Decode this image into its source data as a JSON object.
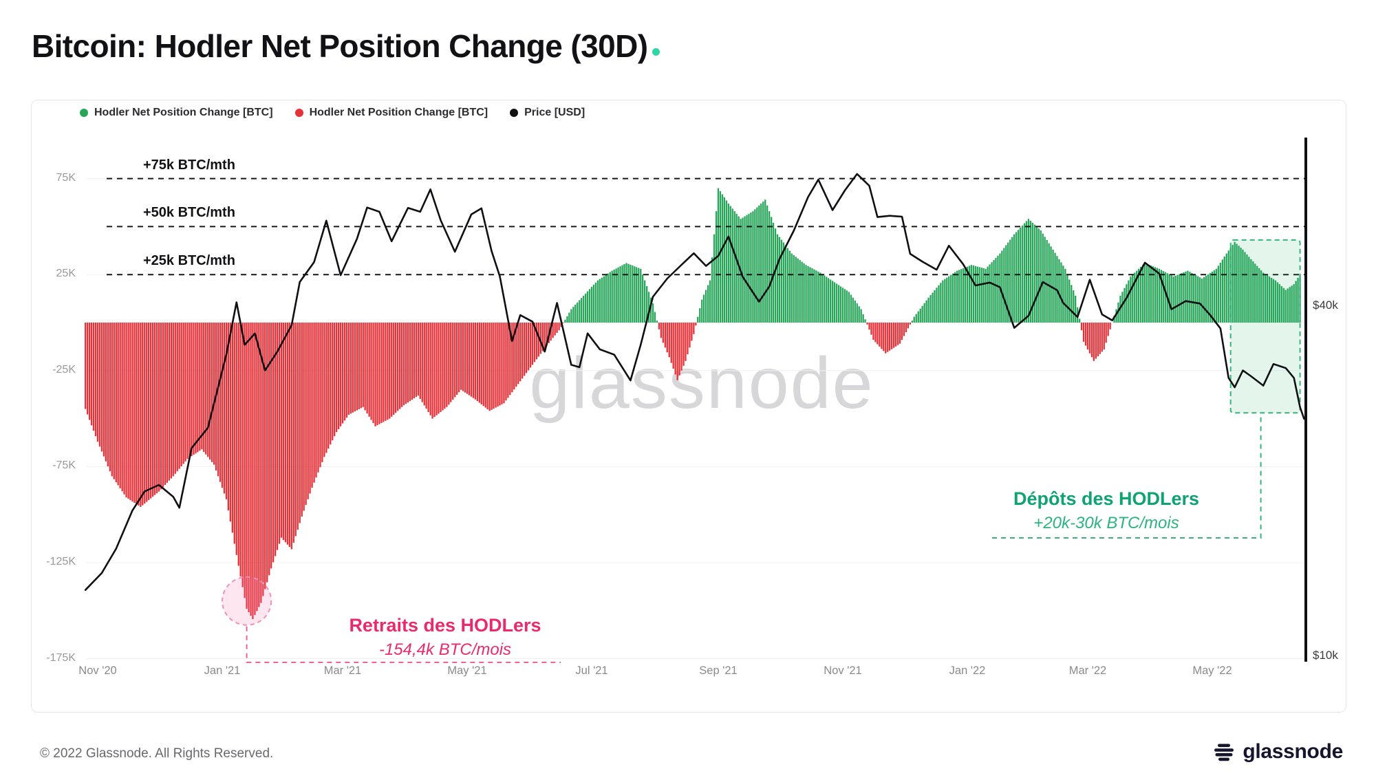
{
  "page": {
    "title": "Bitcoin: Hodler Net Position Change (30D)",
    "footer_copyright": "© 2022 Glassnode. All Rights Reserved.",
    "brand_logo_text": "glassnode",
    "watermark": "glassnode",
    "accent_teal": "#2fd6a5"
  },
  "legend": [
    {
      "label": "Hodler Net Position Change [BTC]",
      "color": "#27a65a"
    },
    {
      "label": "Hodler Net Position Change [BTC]",
      "color": "#e53137"
    },
    {
      "label": "Price [USD]",
      "color": "#111111"
    }
  ],
  "chart_data": {
    "type": "bar+line",
    "title": "Bitcoin: Hodler Net Position Change (30D)",
    "x_axis": {
      "ticks": [
        {
          "label": "Nov '20",
          "date": "2020-11-01"
        },
        {
          "label": "Jan '21",
          "date": "2021-01-01"
        },
        {
          "label": "Mar '21",
          "date": "2021-03-01"
        },
        {
          "label": "May '21",
          "date": "2021-05-01"
        },
        {
          "label": "Jul '21",
          "date": "2021-07-01"
        },
        {
          "label": "Sep '21",
          "date": "2021-09-01"
        },
        {
          "label": "Nov '21",
          "date": "2021-11-01"
        },
        {
          "label": "Jan '22",
          "date": "2022-01-01"
        },
        {
          "label": "Mar '22",
          "date": "2022-03-01"
        },
        {
          "label": "May '22",
          "date": "2022-05-01"
        }
      ]
    },
    "y_axis_left": {
      "unit": "BTC (thousands)",
      "range_k": [
        -185,
        90
      ],
      "ticks": [
        {
          "label": "75K",
          "value_k": 75
        },
        {
          "label": "25K",
          "value_k": 25
        },
        {
          "label": "-25K",
          "value_k": -25
        },
        {
          "label": "-75K",
          "value_k": -75
        },
        {
          "label": "-125K",
          "value_k": -125
        },
        {
          "label": "-175K",
          "value_k": -175
        }
      ]
    },
    "y_axis_right": {
      "unit": "USD (thousands)",
      "scale": "log",
      "ticks": [
        {
          "label": "$40k",
          "value_k": 40
        },
        {
          "label": "$10k",
          "value_k": 10
        }
      ]
    },
    "threshold_lines": [
      {
        "label": "+75k BTC/mth",
        "value_k": 75
      },
      {
        "label": "+50k BTC/mth",
        "value_k": 50
      },
      {
        "label": "+25k BTC/mth",
        "value_k": 25
      }
    ],
    "series": [
      {
        "name": "Hodler Net Position Change [BTC]",
        "type": "bar",
        "unit": "k BTC / month",
        "color_positive": "#27a65a",
        "color_negative": "#e53137",
        "points": [
          [
            "2020-10-26",
            -45
          ],
          [
            "2020-11-01",
            -62
          ],
          [
            "2020-11-08",
            -80
          ],
          [
            "2020-11-15",
            -91
          ],
          [
            "2020-11-22",
            -96
          ],
          [
            "2020-12-01",
            -88
          ],
          [
            "2020-12-08",
            -80
          ],
          [
            "2020-12-15",
            -71
          ],
          [
            "2020-12-22",
            -66
          ],
          [
            "2020-12-28",
            -74
          ],
          [
            "2021-01-03",
            -92
          ],
          [
            "2021-01-08",
            -121
          ],
          [
            "2021-01-13",
            -149
          ],
          [
            "2021-01-16",
            -154.4
          ],
          [
            "2021-01-20",
            -146
          ],
          [
            "2021-01-25",
            -128
          ],
          [
            "2021-01-30",
            -112
          ],
          [
            "2021-02-04",
            -118
          ],
          [
            "2021-02-09",
            -101
          ],
          [
            "2021-02-14",
            -86
          ],
          [
            "2021-02-20",
            -70
          ],
          [
            "2021-02-26",
            -57
          ],
          [
            "2021-03-04",
            -48
          ],
          [
            "2021-03-11",
            -44
          ],
          [
            "2021-03-17",
            -54
          ],
          [
            "2021-03-24",
            -50
          ],
          [
            "2021-03-31",
            -43
          ],
          [
            "2021-04-07",
            -38
          ],
          [
            "2021-04-14",
            -50
          ],
          [
            "2021-04-21",
            -44
          ],
          [
            "2021-04-28",
            -35
          ],
          [
            "2021-05-05",
            -40
          ],
          [
            "2021-05-12",
            -46
          ],
          [
            "2021-05-19",
            -42
          ],
          [
            "2021-05-26",
            -32
          ],
          [
            "2021-06-02",
            -22
          ],
          [
            "2021-06-09",
            -12
          ],
          [
            "2021-06-15",
            -4
          ],
          [
            "2021-06-21",
            7
          ],
          [
            "2021-06-27",
            14
          ],
          [
            "2021-07-04",
            22
          ],
          [
            "2021-07-11",
            27
          ],
          [
            "2021-07-18",
            31
          ],
          [
            "2021-07-25",
            28
          ],
          [
            "2021-07-31",
            10
          ],
          [
            "2021-08-04",
            -8
          ],
          [
            "2021-08-08",
            -18
          ],
          [
            "2021-08-12",
            -30
          ],
          [
            "2021-08-16",
            -20
          ],
          [
            "2021-08-20",
            -6
          ],
          [
            "2021-08-24",
            12
          ],
          [
            "2021-08-28",
            22
          ],
          [
            "2021-09-01",
            70
          ],
          [
            "2021-09-06",
            62
          ],
          [
            "2021-09-12",
            54
          ],
          [
            "2021-09-18",
            58
          ],
          [
            "2021-09-24",
            64
          ],
          [
            "2021-09-30",
            46
          ],
          [
            "2021-10-07",
            36
          ],
          [
            "2021-10-14",
            30
          ],
          [
            "2021-10-21",
            26
          ],
          [
            "2021-10-28",
            21
          ],
          [
            "2021-11-04",
            16
          ],
          [
            "2021-11-10",
            7
          ],
          [
            "2021-11-16",
            -9
          ],
          [
            "2021-11-22",
            -16
          ],
          [
            "2021-11-29",
            -11
          ],
          [
            "2021-12-06",
            3
          ],
          [
            "2021-12-13",
            13
          ],
          [
            "2021-12-20",
            22
          ],
          [
            "2021-12-27",
            27
          ],
          [
            "2022-01-03",
            30
          ],
          [
            "2022-01-10",
            28
          ],
          [
            "2022-01-17",
            36
          ],
          [
            "2022-01-24",
            46
          ],
          [
            "2022-01-31",
            54
          ],
          [
            "2022-02-06",
            48
          ],
          [
            "2022-02-12",
            38
          ],
          [
            "2022-02-18",
            28
          ],
          [
            "2022-02-23",
            14
          ],
          [
            "2022-02-27",
            -10
          ],
          [
            "2022-03-04",
            -20
          ],
          [
            "2022-03-09",
            -14
          ],
          [
            "2022-03-13",
            0
          ],
          [
            "2022-03-17",
            14
          ],
          [
            "2022-03-22",
            24
          ],
          [
            "2022-03-29",
            31
          ],
          [
            "2022-04-05",
            28
          ],
          [
            "2022-04-12",
            24
          ],
          [
            "2022-04-19",
            27
          ],
          [
            "2022-04-26",
            23
          ],
          [
            "2022-05-03",
            28
          ],
          [
            "2022-05-08",
            36
          ],
          [
            "2022-05-12",
            42
          ],
          [
            "2022-05-16",
            38
          ],
          [
            "2022-05-20",
            33
          ],
          [
            "2022-05-26",
            26
          ],
          [
            "2022-06-01",
            22
          ],
          [
            "2022-06-06",
            17
          ],
          [
            "2022-06-10",
            20
          ],
          [
            "2022-06-13",
            25
          ]
        ]
      },
      {
        "name": "Price [USD]",
        "type": "line",
        "unit": "k USD",
        "color": "#0f0f14",
        "points": [
          [
            "2020-10-26",
            13.0
          ],
          [
            "2020-11-03",
            13.9
          ],
          [
            "2020-11-10",
            15.3
          ],
          [
            "2020-11-18",
            17.8
          ],
          [
            "2020-11-24",
            19.2
          ],
          [
            "2020-12-01",
            19.7
          ],
          [
            "2020-12-08",
            18.8
          ],
          [
            "2020-12-11",
            18.0
          ],
          [
            "2020-12-17",
            22.8
          ],
          [
            "2020-12-25",
            24.7
          ],
          [
            "2021-01-03",
            33.0
          ],
          [
            "2021-01-08",
            40.6
          ],
          [
            "2021-01-12",
            34.3
          ],
          [
            "2021-01-17",
            35.9
          ],
          [
            "2021-01-22",
            31.0
          ],
          [
            "2021-01-28",
            33.4
          ],
          [
            "2021-02-04",
            37.1
          ],
          [
            "2021-02-08",
            44.0
          ],
          [
            "2021-02-15",
            47.6
          ],
          [
            "2021-02-21",
            56.1
          ],
          [
            "2021-02-28",
            45.2
          ],
          [
            "2021-03-08",
            52.2
          ],
          [
            "2021-03-13",
            59.1
          ],
          [
            "2021-03-19",
            58.1
          ],
          [
            "2021-03-25",
            51.7
          ],
          [
            "2021-04-02",
            59.0
          ],
          [
            "2021-04-08",
            58.1
          ],
          [
            "2021-04-13",
            63.5
          ],
          [
            "2021-04-18",
            56.2
          ],
          [
            "2021-04-25",
            49.6
          ],
          [
            "2021-05-03",
            57.5
          ],
          [
            "2021-05-08",
            58.9
          ],
          [
            "2021-05-13",
            49.7
          ],
          [
            "2021-05-17",
            45.0
          ],
          [
            "2021-05-23",
            34.8
          ],
          [
            "2021-05-27",
            38.6
          ],
          [
            "2021-06-02",
            37.6
          ],
          [
            "2021-06-08",
            33.4
          ],
          [
            "2021-06-14",
            40.5
          ],
          [
            "2021-06-21",
            31.7
          ],
          [
            "2021-06-25",
            31.4
          ],
          [
            "2021-06-29",
            35.9
          ],
          [
            "2021-07-05",
            33.7
          ],
          [
            "2021-07-12",
            33.0
          ],
          [
            "2021-07-20",
            29.8
          ],
          [
            "2021-07-25",
            34.3
          ],
          [
            "2021-07-31",
            41.5
          ],
          [
            "2021-08-07",
            44.6
          ],
          [
            "2021-08-14",
            47.1
          ],
          [
            "2021-08-20",
            49.3
          ],
          [
            "2021-08-26",
            46.9
          ],
          [
            "2021-09-01",
            48.8
          ],
          [
            "2021-09-06",
            52.7
          ],
          [
            "2021-09-13",
            44.9
          ],
          [
            "2021-09-21",
            40.7
          ],
          [
            "2021-09-26",
            43.2
          ],
          [
            "2021-10-01",
            48.2
          ],
          [
            "2021-10-08",
            53.9
          ],
          [
            "2021-10-15",
            61.6
          ],
          [
            "2021-10-20",
            66.0
          ],
          [
            "2021-10-27",
            58.5
          ],
          [
            "2021-11-02",
            63.2
          ],
          [
            "2021-11-08",
            67.5
          ],
          [
            "2021-11-14",
            64.4
          ],
          [
            "2021-11-18",
            56.9
          ],
          [
            "2021-11-24",
            57.2
          ],
          [
            "2021-11-30",
            57.0
          ],
          [
            "2021-12-04",
            49.2
          ],
          [
            "2021-12-10",
            47.7
          ],
          [
            "2021-12-17",
            46.2
          ],
          [
            "2021-12-23",
            50.8
          ],
          [
            "2021-12-30",
            47.2
          ],
          [
            "2022-01-05",
            43.4
          ],
          [
            "2022-01-12",
            43.9
          ],
          [
            "2022-01-17",
            43.1
          ],
          [
            "2022-01-24",
            36.7
          ],
          [
            "2022-01-31",
            38.5
          ],
          [
            "2022-02-07",
            44.0
          ],
          [
            "2022-02-14",
            42.6
          ],
          [
            "2022-02-17",
            40.5
          ],
          [
            "2022-02-24",
            38.3
          ],
          [
            "2022-03-02",
            44.4
          ],
          [
            "2022-03-08",
            38.7
          ],
          [
            "2022-03-13",
            37.8
          ],
          [
            "2022-03-20",
            41.3
          ],
          [
            "2022-03-29",
            47.5
          ],
          [
            "2022-04-05",
            45.5
          ],
          [
            "2022-04-11",
            39.5
          ],
          [
            "2022-04-18",
            40.8
          ],
          [
            "2022-04-25",
            40.4
          ],
          [
            "2022-04-30",
            38.6
          ],
          [
            "2022-05-05",
            36.6
          ],
          [
            "2022-05-09",
            30.1
          ],
          [
            "2022-05-12",
            29.0
          ],
          [
            "2022-05-16",
            31.0
          ],
          [
            "2022-05-20",
            30.3
          ],
          [
            "2022-05-26",
            29.2
          ],
          [
            "2022-05-31",
            31.8
          ],
          [
            "2022-06-06",
            31.3
          ],
          [
            "2022-06-10",
            30.1
          ],
          [
            "2022-06-13",
            26.8
          ],
          [
            "2022-06-15",
            25.6
          ]
        ]
      }
    ],
    "annotations": {
      "withdrawals": {
        "title": "Retraits des HODLers",
        "subtitle": "-154,4k  BTC/mois",
        "color": "#ea2a6d",
        "circle": {
          "date": "2021-01-13",
          "value_k": -145,
          "rx_days": 12,
          "ry_k": 12.5
        }
      },
      "deposits": {
        "title": "Dépôts des HODLers",
        "subtitle": "+20k-30k BTC/mois",
        "color": "#0ea371",
        "box": {
          "date_start": "2022-05-10",
          "date_end": "2022-06-13",
          "value_top_k": 43,
          "value_bottom_k": -47
        }
      }
    }
  }
}
